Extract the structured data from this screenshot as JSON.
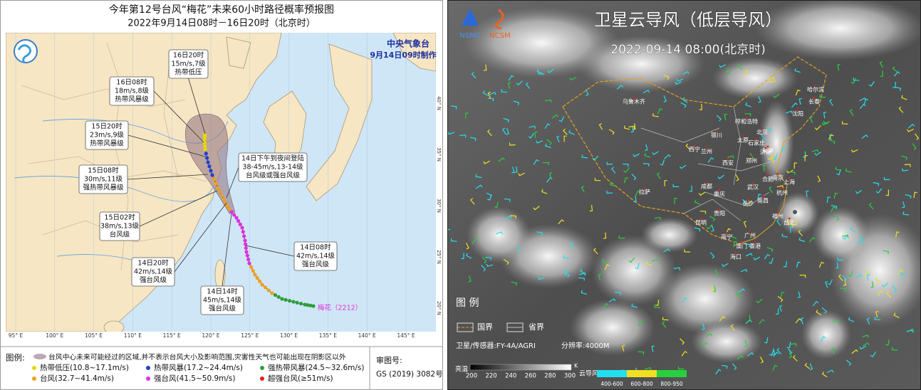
{
  "track_map": {
    "title": "今年第12号台风“梅花”未来60小时路径概率预报图",
    "subtitle": "2022年9月14日08时－16日20时（北京时）",
    "agency": "中央气象台",
    "issued": "9月14日09时制作",
    "callouts": [
      {
        "lines": [
          "16日20时",
          "15m/s,7级",
          "热带低压"
        ]
      },
      {
        "lines": [
          "16日08时",
          "18m/s,8级",
          "热带风暴级"
        ]
      },
      {
        "lines": [
          "15日20时",
          "23m/s,9级",
          "热带风暴级"
        ]
      },
      {
        "lines": [
          "15日08时",
          "30m/s,11级",
          "强热带风暴级"
        ]
      },
      {
        "lines": [
          "15日02时",
          "38m/s,13级",
          "台风级"
        ]
      },
      {
        "lines": [
          "14日20时",
          "42m/s,14级",
          "强台风级"
        ]
      },
      {
        "lines": [
          "14日14时",
          "45m/s,14级",
          "强台风级"
        ]
      },
      {
        "lines": [
          "14日08时",
          "42m/s,14级",
          "强台风级"
        ]
      },
      {
        "lines": [
          "14日下午到夜间登陆",
          "38-45m/s,13-14级",
          "台风级或强台风级"
        ]
      }
    ],
    "storm_label": "梅花（2212）",
    "longitude_labels": [
      "95° E",
      "100° E",
      "105° E",
      "110° E",
      "115° E",
      "120° E",
      "125° E",
      "130° E",
      "135° E",
      "140° E",
      "145° E"
    ],
    "latitude_labels": [
      "40° N",
      "35° N",
      "30° N",
      "25° N",
      "20° N"
    ],
    "legend": {
      "heading": "图例:",
      "cone_note": "台风中心未来可能经过的区域,并不表示台风大小及影响范围,灾害性天气也可能出现在阴影区以外",
      "items": [
        {
          "label": "热带低压(10.8~17.1m/s)",
          "color": "#e8d800"
        },
        {
          "label": "热带风暴(17.2~24.4m/s)",
          "color": "#2140d0"
        },
        {
          "label": "强热带风暴(24.5~32.6m/s)",
          "color": "#2f9e3a"
        },
        {
          "label": "台风(32.7~41.4m/s)",
          "color": "#f0a020"
        },
        {
          "label": "强台风(41.5~50.9m/s)",
          "color": "#e030e0"
        },
        {
          "label": "超强台风(≥51m/s)",
          "color": "#e02020"
        }
      ]
    },
    "approval": {
      "heading": "审图号:",
      "number": "GS (2019) 3082号"
    }
  },
  "satellite": {
    "logos": [
      "NSMC",
      "NCSM"
    ],
    "title": "卫星云导风（低层导风）",
    "time": "2022-09-14 08:00(北京时)",
    "cities": [
      "乌鲁木齐",
      "哈尔滨",
      "长春",
      "沈阳",
      "呼和浩特",
      "北京",
      "天津",
      "银川",
      "太原",
      "石家庄",
      "西宁",
      "兰州",
      "济南",
      "郑州",
      "西安",
      "合肥",
      "南京",
      "上海",
      "武汉",
      "杭州",
      "成都",
      "重庆",
      "拉萨",
      "长沙",
      "南昌",
      "福州",
      "贵阳",
      "昆明",
      "台北",
      "南宁",
      "广州",
      "澳门",
      "香港",
      "海口"
    ],
    "legend": {
      "heading": "图 例",
      "national_border": "国界",
      "provincial_border": "省界",
      "sensor": "卫星/传感器:FY-4A/AGRI",
      "resolution": "分辨率:4000M",
      "brightness_label": "亮温",
      "brightness_ticks": [
        200,
        220,
        240,
        260,
        280,
        300
      ],
      "brightness_unit": "K",
      "wind_label": "云导风",
      "wind_bands": [
        {
          "label": "400-600",
          "color": "#22e0f0"
        },
        {
          "label": "600-800",
          "color": "#f0e020"
        },
        {
          "label": "800-950",
          "color": "#28d040"
        }
      ]
    }
  }
}
